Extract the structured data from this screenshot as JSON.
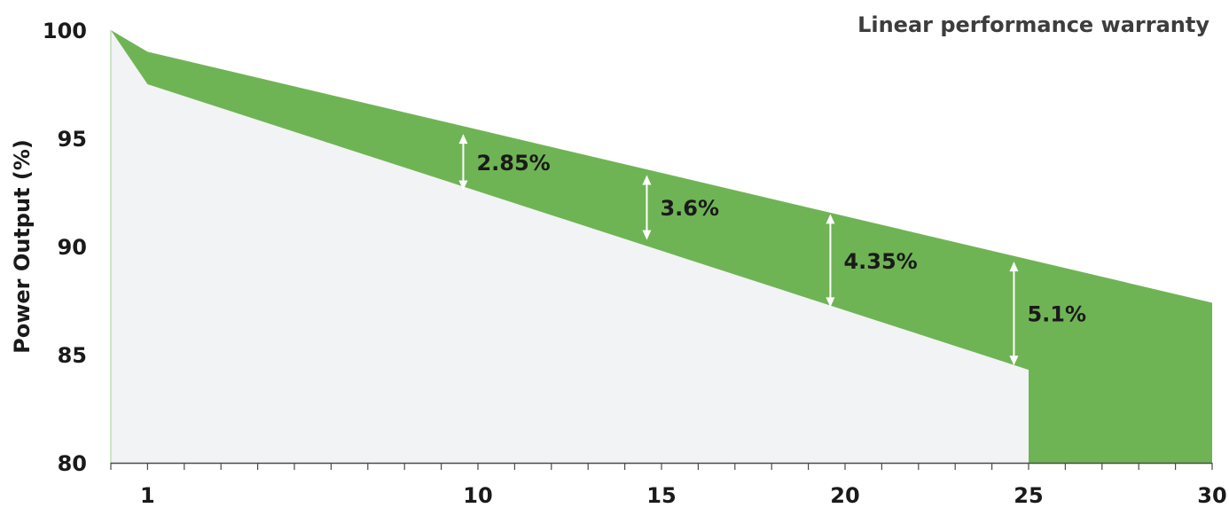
{
  "chart_data": {
    "type": "area",
    "title": "Linear performance warranty",
    "ylabel": "Power Output (%)",
    "xlabel": "",
    "xlim": [
      0,
      30
    ],
    "ylim": [
      80,
      100
    ],
    "x_ticks": [
      1,
      10,
      15,
      20,
      25,
      30
    ],
    "x_minor_ticks": [
      1,
      2,
      3,
      4,
      5,
      6,
      7,
      8,
      9,
      10,
      11,
      12,
      13,
      14,
      15,
      16,
      17,
      18,
      19,
      20,
      21,
      22,
      23,
      24,
      25,
      26,
      27,
      28,
      29,
      30
    ],
    "y_ticks": [
      80,
      85,
      90,
      95,
      100
    ],
    "series": [
      {
        "role": "upper",
        "x": [
          0,
          1,
          30
        ],
        "values": [
          100,
          99,
          87.4
        ]
      },
      {
        "role": "lower",
        "x": [
          0,
          1,
          25,
          25
        ],
        "values": [
          100,
          97.5,
          84.3,
          80
        ]
      }
    ],
    "annotations": [
      {
        "x": 9.6,
        "y_top": 95.2,
        "y_bottom": 92.6,
        "label": "2.85%"
      },
      {
        "x": 14.6,
        "y_top": 93.3,
        "y_bottom": 90.3,
        "label": "3.6%"
      },
      {
        "x": 19.6,
        "y_top": 91.5,
        "y_bottom": 87.2,
        "label": "4.35%"
      },
      {
        "x": 24.6,
        "y_top": 89.3,
        "y_bottom": 84.5,
        "label": "5.1%"
      }
    ],
    "colors": {
      "band": "#6fb454",
      "base": "#f2f3f5",
      "base_edge": "#bfe0b0",
      "arrow": "#ffffff",
      "axis": "#4a4a4a",
      "text": "#1a1a1a",
      "title": "#3d3d3d"
    },
    "grid": false
  }
}
